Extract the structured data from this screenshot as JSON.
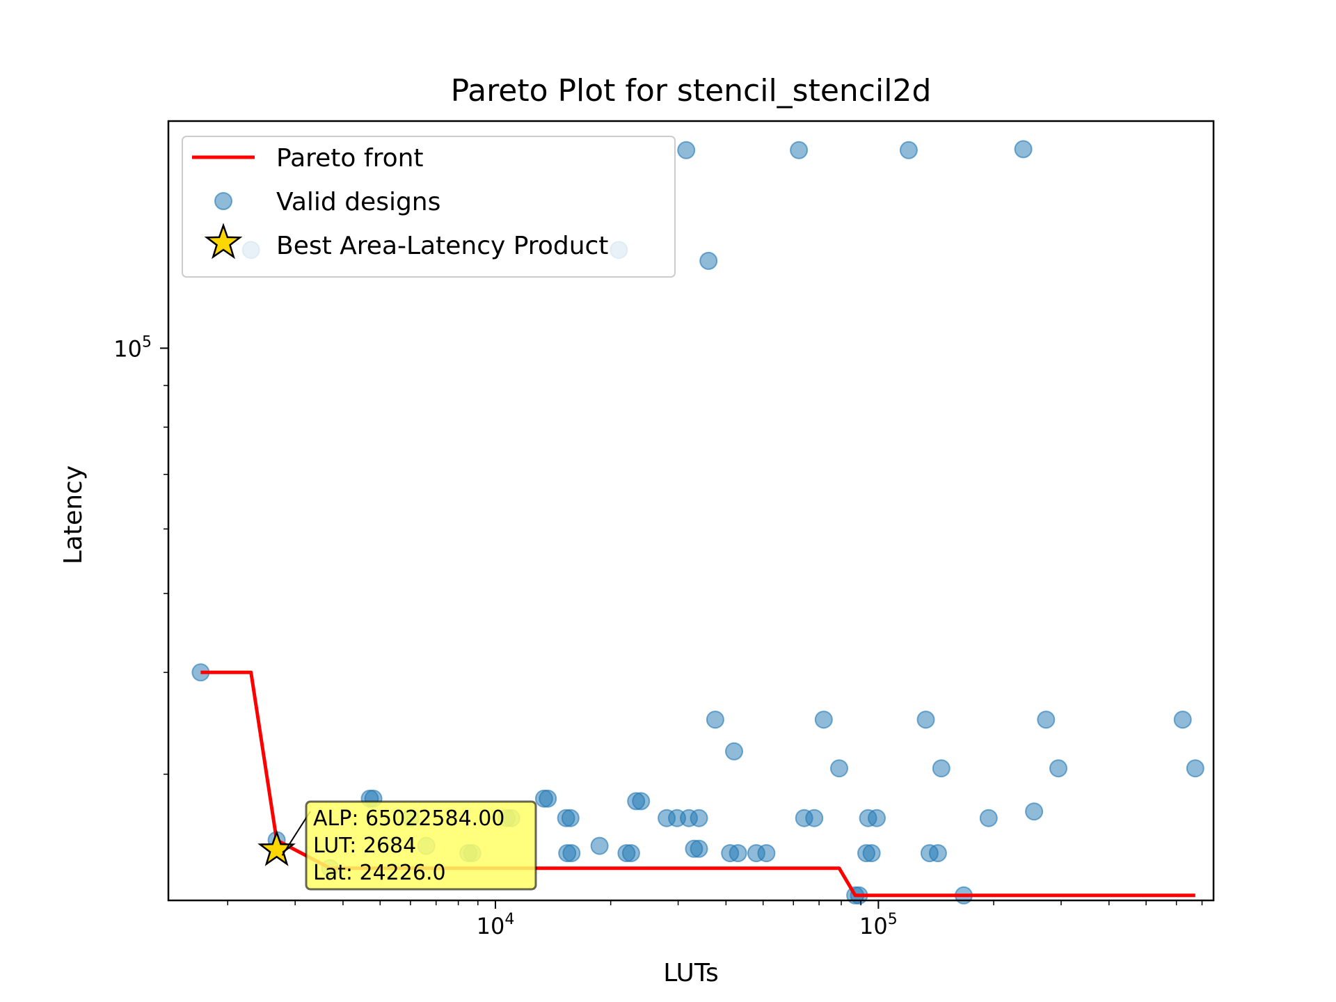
{
  "chart_data": {
    "type": "scatter",
    "title": "Pareto Plot for stencil_stencil2d",
    "xlabel": "LUTs",
    "ylabel": "Latency",
    "xscale": "log",
    "yscale": "log",
    "xlim": [
      1400,
      750000
    ],
    "ylim": [
      21000,
      190000
    ],
    "x_ticks": [
      {
        "value": 10000,
        "base": "10",
        "exp": "4"
      },
      {
        "value": 100000,
        "base": "10",
        "exp": "5"
      }
    ],
    "y_ticks": [
      {
        "value": 100000,
        "base": "10",
        "exp": "5"
      }
    ],
    "grid": false,
    "legend": {
      "placement": "top-left",
      "entries": [
        "Pareto front",
        "Valid designs",
        "Best Area-Latency Product"
      ]
    },
    "colors": {
      "pareto": "#ff0000",
      "points": "#1f77b4",
      "star": "#ffd700",
      "annotation_bg": "#ffff66"
    },
    "series": [
      {
        "name": "Valid designs",
        "kind": "scatter",
        "points": [
          [
            1700,
            40000
          ],
          [
            2684,
            24900
          ],
          [
            3700,
            23000
          ],
          [
            4700,
            28000
          ],
          [
            4800,
            28000
          ],
          [
            6000,
            26500
          ],
          [
            6600,
            24500
          ],
          [
            8500,
            24000
          ],
          [
            8700,
            24000
          ],
          [
            10700,
            26500
          ],
          [
            11000,
            26500
          ],
          [
            13400,
            28000
          ],
          [
            13700,
            28000
          ],
          [
            15300,
            26500
          ],
          [
            15700,
            26500
          ],
          [
            15400,
            24000
          ],
          [
            15800,
            24000
          ],
          [
            18700,
            24500
          ],
          [
            22000,
            24000
          ],
          [
            22600,
            24000
          ],
          [
            23300,
            27800
          ],
          [
            24000,
            27800
          ],
          [
            28000,
            26500
          ],
          [
            29800,
            26500
          ],
          [
            32000,
            26500
          ],
          [
            34000,
            26500
          ],
          [
            33000,
            24300
          ],
          [
            34000,
            24300
          ],
          [
            37500,
            35000
          ],
          [
            41000,
            24000
          ],
          [
            43000,
            24000
          ],
          [
            42000,
            32000
          ],
          [
            48000,
            24000
          ],
          [
            51000,
            24000
          ],
          [
            64000,
            26500
          ],
          [
            68000,
            26500
          ],
          [
            72000,
            35000
          ],
          [
            79000,
            30500
          ],
          [
            87000,
            21300
          ],
          [
            89000,
            21300
          ],
          [
            93000,
            24000
          ],
          [
            96000,
            24000
          ],
          [
            94000,
            26500
          ],
          [
            99000,
            26500
          ],
          [
            133000,
            35000
          ],
          [
            136000,
            24000
          ],
          [
            143000,
            24000
          ],
          [
            146000,
            30500
          ],
          [
            167000,
            21300
          ],
          [
            194000,
            26500
          ],
          [
            255000,
            27000
          ],
          [
            274000,
            35000
          ],
          [
            295000,
            30500
          ],
          [
            623000,
            35000
          ],
          [
            672000,
            30500
          ],
          [
            2300,
            132000
          ],
          [
            21000,
            132000
          ],
          [
            36000,
            128000
          ],
          [
            31500,
            175000
          ],
          [
            62000,
            175000
          ],
          [
            120000,
            175000
          ],
          [
            239000,
            175500
          ]
        ]
      },
      {
        "name": "Pareto front",
        "kind": "line",
        "points": [
          [
            1700,
            40000
          ],
          [
            2300,
            40000
          ],
          [
            2684,
            24900
          ],
          [
            3700,
            23000
          ],
          [
            79000,
            23000
          ],
          [
            87000,
            21300
          ],
          [
            167000,
            21300
          ],
          [
            672000,
            21300
          ]
        ]
      },
      {
        "name": "Best Area-Latency Product",
        "kind": "marker",
        "points": [
          [
            2684,
            24226
          ]
        ]
      }
    ],
    "annotation": {
      "lines": [
        "ALP: 65022584.00",
        "LUT: 2684",
        "Lat: 24226.0"
      ]
    }
  }
}
